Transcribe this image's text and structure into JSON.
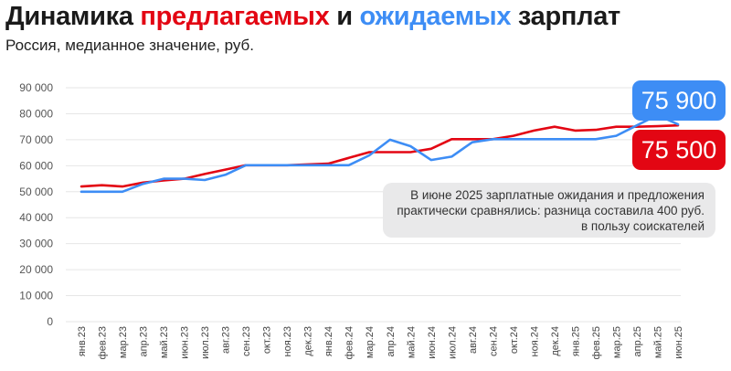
{
  "title": {
    "part1": "Динамика ",
    "part2": "предлагаемых",
    "part3": " и ",
    "part4": "ожидаемых",
    "part5": " зарплат"
  },
  "subtitle": "Россия, медианное значение, руб.",
  "note": "В июне 2025 зарплатные ожидания и предложения практически сравнялись: разница составила 400 руб. в пользу соискателей",
  "badges": {
    "expected": "75 900",
    "offered": "75 500"
  },
  "colors": {
    "offered": "#e30613",
    "expected": "#3d8df5"
  },
  "chart_data": {
    "type": "line",
    "x": [
      "янв.23",
      "фев.23",
      "мар.23",
      "апр.23",
      "май.23",
      "июн.23",
      "июл.23",
      "авг.23",
      "сен.23",
      "окт.23",
      "ноя.23",
      "дек.23",
      "янв.24",
      "фев.24",
      "мар.24",
      "апр.24",
      "май.24",
      "июн.24",
      "июл.24",
      "авг.24",
      "сен.24",
      "окт.24",
      "ноя.24",
      "дек.24",
      "янв.25",
      "фев.25",
      "мар.25",
      "апр.25",
      "май.25",
      "июн.25"
    ],
    "ylim": [
      0,
      90000
    ],
    "yticks": [
      {
        "v": 0,
        "label": "0"
      },
      {
        "v": 10000,
        "label": "10 000"
      },
      {
        "v": 20000,
        "label": "20 000"
      },
      {
        "v": 30000,
        "label": "30 000"
      },
      {
        "v": 40000,
        "label": "40 000"
      },
      {
        "v": 50000,
        "label": "50 000"
      },
      {
        "v": 60000,
        "label": "60 000"
      },
      {
        "v": 70000,
        "label": "70 000"
      },
      {
        "v": 80000,
        "label": "80 000"
      },
      {
        "v": 90000,
        "label": "90 000"
      }
    ],
    "grid": true,
    "series": [
      {
        "key": "offered",
        "color": "#e30613",
        "values": [
          52000,
          52500,
          52000,
          53500,
          54300,
          55000,
          56800,
          58500,
          60200,
          60200,
          60200,
          60500,
          60800,
          63000,
          65200,
          65200,
          65200,
          66500,
          70200,
          70200,
          70200,
          71500,
          73500,
          75000,
          73500,
          73800,
          75000,
          75000,
          75200,
          75500
        ]
      },
      {
        "key": "expected",
        "color": "#3d8df5",
        "values": [
          50000,
          50000,
          50000,
          53000,
          55000,
          55000,
          54500,
          56500,
          60200,
          60200,
          60200,
          60200,
          60200,
          60200,
          64000,
          70000,
          67500,
          62200,
          63500,
          69000,
          70200,
          70200,
          70200,
          70200,
          70200,
          70200,
          71500,
          75500,
          79500,
          75900
        ]
      }
    ]
  }
}
